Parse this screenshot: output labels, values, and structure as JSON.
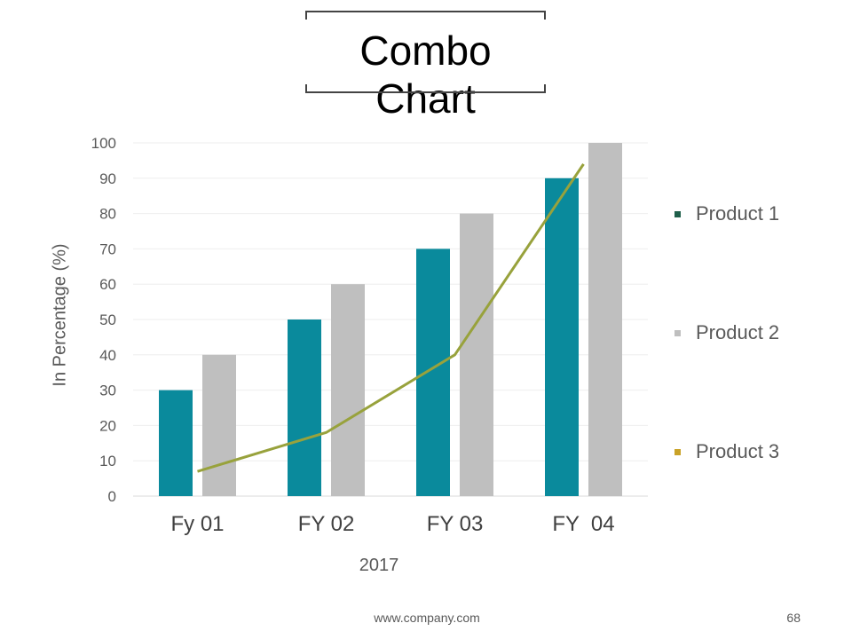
{
  "title": "Combo Chart",
  "footer": {
    "url": "www.company.com",
    "page": "68"
  },
  "chart_data": {
    "type": "bar",
    "combo": true,
    "title": "Combo Chart",
    "xlabel": "2017",
    "ylabel": "In Percentage (%)",
    "ylim": [
      0,
      100
    ],
    "yticks": [
      0,
      10,
      20,
      30,
      40,
      50,
      60,
      70,
      80,
      90,
      100
    ],
    "categories": [
      "Fy 01",
      "FY 02",
      "FY 03",
      "FY  04"
    ],
    "series": [
      {
        "name": "Product 1",
        "kind": "bar",
        "color": "#0a8a9c",
        "values": [
          30,
          50,
          70,
          90
        ]
      },
      {
        "name": "Product 2",
        "kind": "bar",
        "color": "#bfbfbf",
        "values": [
          40,
          60,
          80,
          100
        ]
      },
      {
        "name": "Product 3",
        "kind": "line",
        "color": "#98a23c",
        "values": [
          7,
          18,
          40,
          94
        ]
      }
    ],
    "legend": {
      "position": "right",
      "swatch_colors": [
        "#1f5f4a",
        "#bfbfbf",
        "#c9a227"
      ]
    },
    "grid": true
  }
}
